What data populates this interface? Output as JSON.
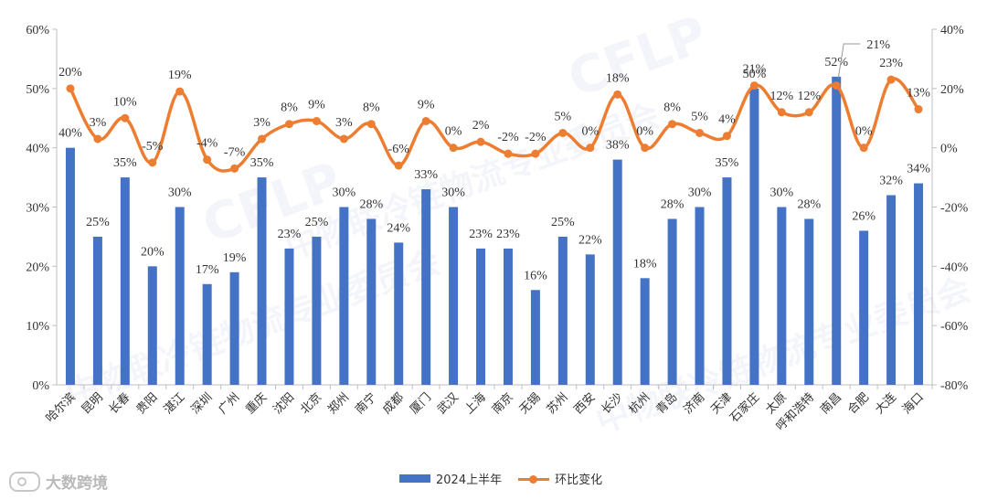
{
  "chart_data": {
    "type": "bar",
    "categories": [
      "哈尔滨",
      "昆明",
      "长春",
      "贵阳",
      "湛江",
      "深圳",
      "广州",
      "重庆",
      "沈阳",
      "北京",
      "郑州",
      "南宁",
      "成都",
      "厦门",
      "武汉",
      "上海",
      "南京",
      "无锡",
      "苏州",
      "西安",
      "长沙",
      "杭州",
      "青岛",
      "济南",
      "天津",
      "石家庄",
      "太原",
      "呼和浩特",
      "南昌",
      "合肥",
      "大连",
      "海口"
    ],
    "series": [
      {
        "name": "2024上半年",
        "axis": "left",
        "color": "#4472C4",
        "values": [
          40,
          25,
          35,
          20,
          30,
          17,
          19,
          35,
          23,
          25,
          30,
          28,
          24,
          33,
          30,
          23,
          23,
          16,
          25,
          22,
          38,
          18,
          28,
          30,
          35,
          50,
          30,
          28,
          52,
          26,
          32,
          34
        ],
        "labels": [
          "40%",
          "25%",
          "35%",
          "20%",
          "30%",
          "17%",
          "19%",
          "35%",
          "23%",
          "25%",
          "30%",
          "28%",
          "24%",
          "33%",
          "30%",
          "23%",
          "23%",
          "16%",
          "25%",
          "22%",
          "38%",
          "18%",
          "28%",
          "30%",
          "35%",
          "50%",
          "30%",
          "28%",
          "52%",
          "26%",
          "32%",
          "34%"
        ]
      },
      {
        "name": "环比变化",
        "axis": "right",
        "color": "#ED7D31",
        "values": [
          20,
          3,
          10,
          -5,
          19,
          -4,
          -7,
          3,
          8,
          9,
          3,
          8,
          -6,
          9,
          0,
          2,
          -2,
          -2,
          5,
          0,
          18,
          0,
          8,
          5,
          4,
          21,
          12,
          12,
          21,
          0,
          23,
          13
        ],
        "labels": [
          "20%",
          "3%",
          "10%",
          "-5%",
          "19%",
          "-4%",
          "-7%",
          "3%",
          "8%",
          "9%",
          "3%",
          "8%",
          "-6%",
          "9%",
          "0%",
          "2%",
          "-2%",
          "-2%",
          "5%",
          "0%",
          "18%",
          "0%",
          "8%",
          "5%",
          "4%",
          "21%",
          "12%",
          "12%",
          "21%",
          "0%",
          "23%",
          "13%"
        ]
      }
    ],
    "left_axis": {
      "min": 0,
      "max": 60,
      "ticks": [
        "0%",
        "10%",
        "20%",
        "30%",
        "40%",
        "50%",
        "60%"
      ]
    },
    "right_axis": {
      "min": -80,
      "max": 40,
      "ticks": [
        "-80%",
        "-60%",
        "-40%",
        "-20%",
        "0%",
        "20%",
        "40%"
      ]
    },
    "grid": false,
    "legend_position": "bottom-center"
  },
  "legend": {
    "bar_label": "2024上半年",
    "line_label": "环比变化"
  },
  "brand": {
    "text": "大数跨境"
  },
  "watermark": {
    "text": "中物联冷链物流专业委员会",
    "logo": "CFLP"
  }
}
